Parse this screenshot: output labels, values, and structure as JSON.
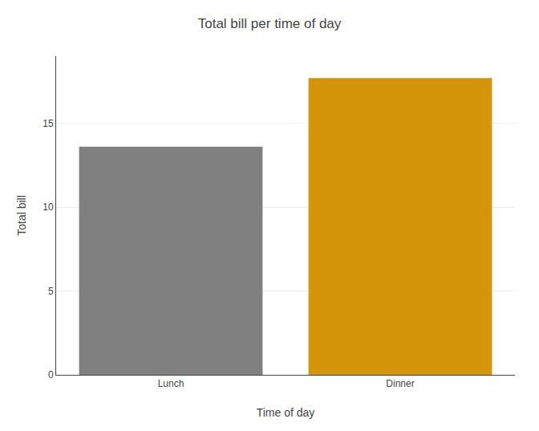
{
  "chart_data": {
    "type": "bar",
    "title": "Total bill per time of day",
    "xlabel": "Time of day",
    "ylabel": "Total bill",
    "categories": [
      "Lunch",
      "Dinner"
    ],
    "values": [
      13.6,
      17.7
    ],
    "colors": [
      "#808080",
      "#D4950A"
    ],
    "ylim": [
      0,
      19.0
    ],
    "yticks": [
      0,
      5,
      10,
      15
    ],
    "grid": true
  }
}
